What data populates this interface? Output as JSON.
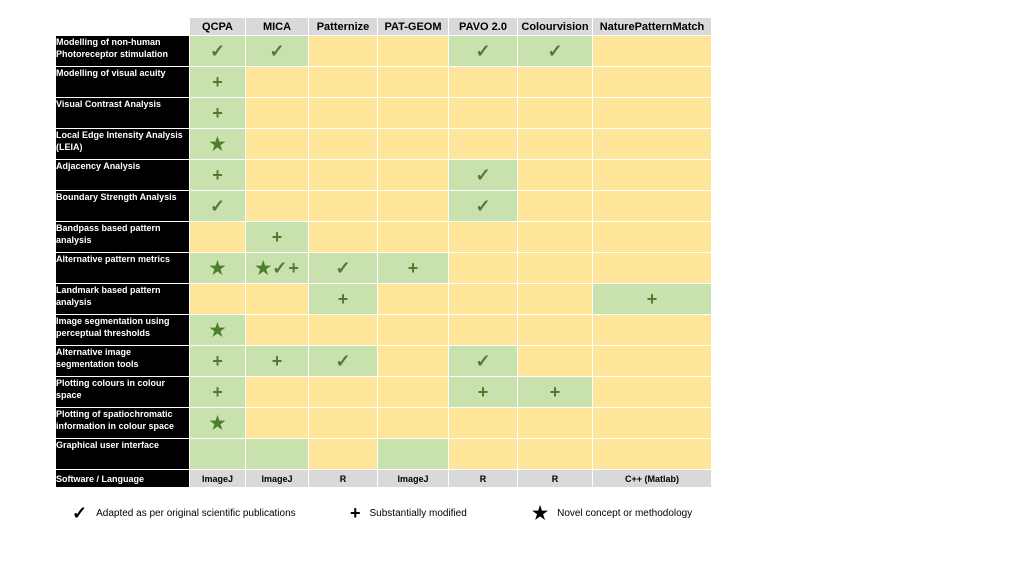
{
  "table": {
    "columns": [
      "QCPA",
      "MICA",
      "Patternize",
      "PAT-GEOM",
      "PAVO 2.0",
      "Colourvision",
      "NaturePatternMatch"
    ],
    "rows": [
      {
        "label": "Modelling of non-human Photoreceptor stimulation",
        "cells": [
          [
            "check"
          ],
          [
            "check"
          ],
          [],
          [],
          [
            "check"
          ],
          [
            "check"
          ],
          []
        ]
      },
      {
        "label": "Modelling of visual acuity",
        "cells": [
          [
            "plus"
          ],
          [],
          [],
          [],
          [],
          [],
          []
        ]
      },
      {
        "label": "Visual Contrast Analysis",
        "cells": [
          [
            "plus"
          ],
          [],
          [],
          [],
          [],
          [],
          []
        ]
      },
      {
        "label": "Local Edge Intensity Analysis (LEIA)",
        "cells": [
          [
            "star"
          ],
          [],
          [],
          [],
          [],
          [],
          []
        ]
      },
      {
        "label": "Adjacency Analysis",
        "cells": [
          [
            "plus"
          ],
          [],
          [],
          [],
          [
            "check"
          ],
          [],
          []
        ]
      },
      {
        "label": "Boundary Strength Analysis",
        "cells": [
          [
            "check"
          ],
          [],
          [],
          [],
          [
            "check"
          ],
          [],
          []
        ]
      },
      {
        "label": "Bandpass based pattern analysis",
        "cells": [
          [],
          [
            "plus"
          ],
          [],
          [],
          [],
          [],
          []
        ]
      },
      {
        "label": "Alternative pattern metrics",
        "cells": [
          [
            "star"
          ],
          [
            "star",
            "check",
            "plus"
          ],
          [
            "check"
          ],
          [
            "plus"
          ],
          [],
          [],
          []
        ]
      },
      {
        "label": "Landmark based pattern analysis",
        "cells": [
          [],
          [],
          [
            "plus"
          ],
          [],
          [],
          [],
          [
            "plus"
          ]
        ]
      },
      {
        "label": "Image segmentation using perceptual thresholds",
        "cells": [
          [
            "star"
          ],
          [],
          [],
          [],
          [],
          [],
          []
        ]
      },
      {
        "label": "Alternative image segmentation tools",
        "cells": [
          [
            "plus"
          ],
          [
            "plus"
          ],
          [
            "check"
          ],
          [],
          [
            "check"
          ],
          [],
          []
        ]
      },
      {
        "label": "Plotting colours in colour space",
        "cells": [
          [
            "plus"
          ],
          [],
          [],
          [],
          [
            "plus"
          ],
          [
            "plus"
          ],
          []
        ]
      },
      {
        "label": "Plotting of spatiochromatic information in colour space",
        "cells": [
          [
            "star"
          ],
          [],
          [],
          [],
          [],
          [],
          []
        ]
      },
      {
        "label": "Graphical user interface",
        "cells": [
          [],
          [],
          [],
          [],
          [],
          [],
          []
        ]
      }
    ],
    "highlight": [
      [
        true,
        true,
        false,
        false,
        true,
        true,
        false
      ],
      [
        true,
        false,
        false,
        false,
        false,
        false,
        false
      ],
      [
        true,
        false,
        false,
        false,
        false,
        false,
        false
      ],
      [
        true,
        false,
        false,
        false,
        false,
        false,
        false
      ],
      [
        true,
        false,
        false,
        false,
        true,
        false,
        false
      ],
      [
        true,
        false,
        false,
        false,
        true,
        false,
        false
      ],
      [
        false,
        true,
        false,
        false,
        false,
        false,
        false
      ],
      [
        true,
        true,
        true,
        true,
        false,
        false,
        false
      ],
      [
        false,
        false,
        true,
        false,
        false,
        false,
        true
      ],
      [
        true,
        false,
        false,
        false,
        false,
        false,
        false
      ],
      [
        true,
        true,
        true,
        false,
        true,
        false,
        false
      ],
      [
        true,
        false,
        false,
        false,
        true,
        true,
        false
      ],
      [
        true,
        false,
        false,
        false,
        false,
        false,
        false
      ],
      [
        true,
        true,
        false,
        true,
        false,
        false,
        false
      ]
    ],
    "footer": {
      "label": "Software / Language",
      "values": [
        "ImageJ",
        "ImageJ",
        "R",
        "ImageJ",
        "R",
        "R",
        "C++ (Matlab)"
      ]
    }
  },
  "legend": [
    {
      "symbol": "check",
      "text": "Adapted as per original scientific publications"
    },
    {
      "symbol": "plus",
      "text": "Substantially modified"
    },
    {
      "symbol": "star",
      "text": "Novel concept or methodology"
    }
  ],
  "symbols": {
    "check": "✓",
    "plus": "+",
    "star": "★"
  },
  "colors": {
    "header_bg": "#d9d9d9",
    "label_bg": "#000000",
    "cell_on": "#c8e1ad",
    "cell_off": "#ffe599",
    "symbol_green": "#4e7d2c"
  }
}
